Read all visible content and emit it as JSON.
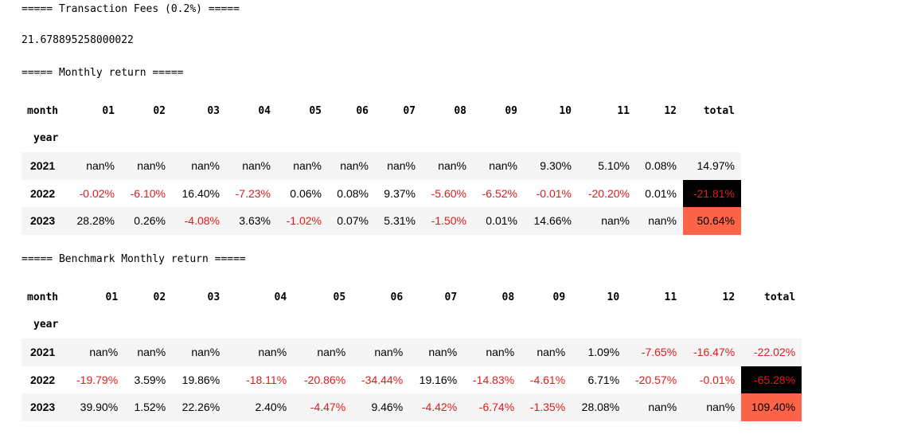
{
  "fees": {
    "header": "===== Transaction Fees (0.2%) =====",
    "value": "21.678895258000022"
  },
  "monthly": {
    "header": "===== Monthly return =====",
    "columns_label": "month",
    "index_label": "year",
    "columns": [
      "01",
      "02",
      "03",
      "04",
      "05",
      "06",
      "07",
      "08",
      "09",
      "10",
      "11",
      "12",
      "total"
    ],
    "rows": [
      {
        "year": "2021",
        "cells": [
          "nan%",
          "nan%",
          "nan%",
          "nan%",
          "nan%",
          "nan%",
          "nan%",
          "nan%",
          "nan%",
          "9.30%",
          "5.10%",
          "0.08%",
          "14.97%"
        ]
      },
      {
        "year": "2022",
        "cells": [
          "-0.02%",
          "-6.10%",
          "16.40%",
          "-7.23%",
          "0.06%",
          "0.08%",
          "9.37%",
          "-5.60%",
          "-6.52%",
          "-0.01%",
          "-20.20%",
          "0.01%",
          "-21.81%"
        ]
      },
      {
        "year": "2023",
        "cells": [
          "28.28%",
          "0.26%",
          "-4.08%",
          "3.63%",
          "-1.02%",
          "0.07%",
          "5.31%",
          "-1.50%",
          "0.01%",
          "14.66%",
          "nan%",
          "nan%",
          "50.64%"
        ]
      }
    ],
    "total_highlight": {
      "2022": "black",
      "2023": "orange"
    }
  },
  "benchmark": {
    "header": "===== Benchmark Monthly return =====",
    "columns_label": "month",
    "index_label": "year",
    "columns": [
      "01",
      "02",
      "03",
      "04",
      "05",
      "06",
      "07",
      "08",
      "09",
      "10",
      "11",
      "12",
      "total"
    ],
    "rows": [
      {
        "year": "2021",
        "cells": [
          "nan%",
          "nan%",
          "nan%",
          "nan%",
          "nan%",
          "nan%",
          "nan%",
          "nan%",
          "nan%",
          "1.09%",
          "-7.65%",
          "-16.47%",
          "-22.02%"
        ]
      },
      {
        "year": "2022",
        "cells": [
          "-19.79%",
          "3.59%",
          "19.86%",
          "-18.11%",
          "-20.86%",
          "-34.44%",
          "19.16%",
          "-14.83%",
          "-4.61%",
          "6.71%",
          "-20.57%",
          "-0.01%",
          "-65.28%"
        ]
      },
      {
        "year": "2023",
        "cells": [
          "39.90%",
          "1.52%",
          "22.26%",
          "2.40%",
          "-4.47%",
          "9.46%",
          "-4.42%",
          "-6.74%",
          "-1.35%",
          "28.08%",
          "nan%",
          "nan%",
          "109.40%"
        ]
      }
    ],
    "total_highlight": {
      "2022": "black",
      "2023": "orange"
    }
  },
  "colors": {
    "negative": "#e31a1c",
    "highlight_black": "#000000",
    "highlight_orange": "#fb6449",
    "row_stripe": "#f5f5f5"
  }
}
